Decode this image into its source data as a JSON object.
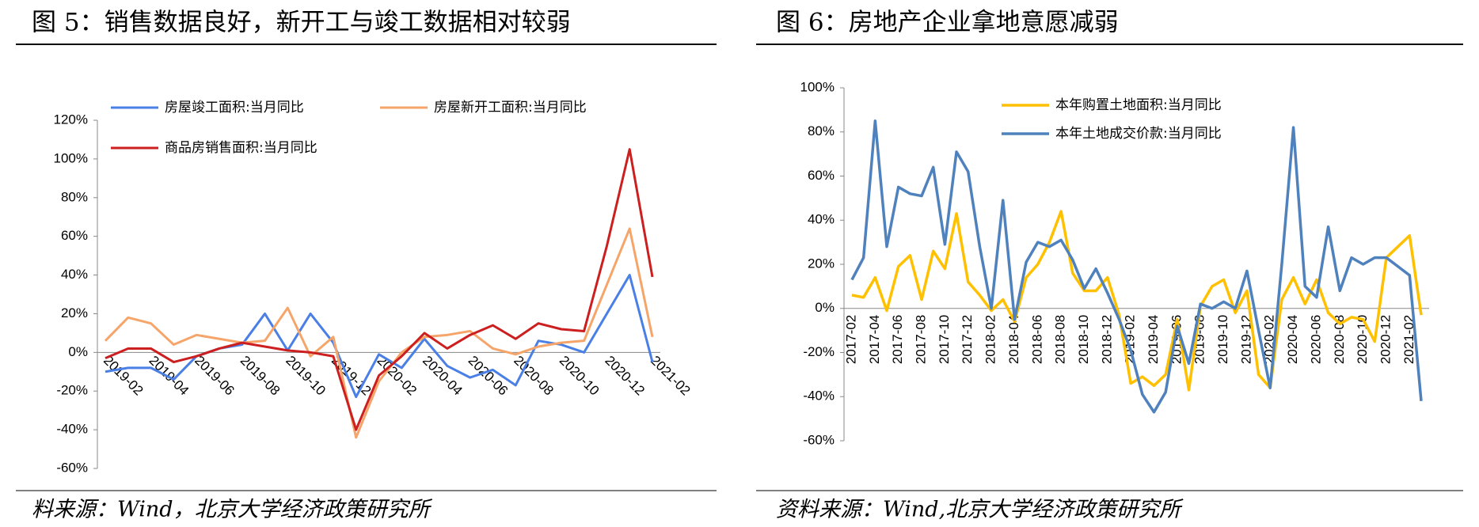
{
  "chart_data": [
    {
      "type": "line",
      "title": "图 5：销售数据良好，新开工与竣工数据相对较弱",
      "source": "料来源：Wind，北京大学经济政策研究所",
      "categories": [
        "2019-02",
        null,
        "2019-04",
        null,
        "2019-06",
        null,
        "2019-08",
        null,
        "2019-10",
        null,
        "2019-12",
        null,
        "2020-02",
        null,
        "2020-04",
        null,
        "2020-06",
        null,
        "2020-08",
        null,
        "2020-10",
        null,
        "2020-12",
        null,
        "2021-02"
      ],
      "series": [
        {
          "name": "房屋竣工面积:当月同比",
          "color": "#4a7fe6",
          "values": [
            -10,
            -8,
            -8,
            -14,
            -2,
            2,
            4,
            20,
            1,
            20,
            5,
            -23,
            -1,
            -8,
            7,
            -7,
            -13,
            -9,
            -17,
            6,
            4,
            0,
            20,
            40,
            -5
          ]
        },
        {
          "name": "房屋新开工面积:当月同比",
          "color": "#f6a56a",
          "values": [
            6,
            18,
            15,
            4,
            9,
            7,
            5,
            6,
            23,
            -2,
            8,
            -44,
            -15,
            0,
            8,
            9,
            11,
            2,
            -1,
            3,
            5,
            6,
            35,
            64,
            8
          ]
        },
        {
          "name": "商品房销售面积:当月同比",
          "color": "#cc1f1f",
          "values": [
            -3,
            2,
            2,
            -5,
            -2,
            2,
            5,
            3,
            1,
            0,
            -2,
            -40,
            -12,
            -2,
            10,
            2,
            9,
            14,
            7,
            15,
            12,
            11,
            55,
            105,
            39
          ]
        }
      ],
      "ylim": [
        -60,
        120
      ],
      "yticks": [
        {
          "value": -60,
          "label": "-60%"
        },
        {
          "value": -40,
          "label": "-40%"
        },
        {
          "value": -20,
          "label": "-20%"
        },
        {
          "value": 0,
          "label": "0%"
        },
        {
          "value": 20,
          "label": "20%"
        },
        {
          "value": 40,
          "label": "40%"
        },
        {
          "value": 60,
          "label": "60%"
        },
        {
          "value": 80,
          "label": "80%"
        },
        {
          "value": 100,
          "label": "100%"
        },
        {
          "value": 120,
          "label": "120%"
        }
      ],
      "grid": false
    },
    {
      "type": "line",
      "title": "图 6：房地产企业拿地意愿减弱",
      "source": "资料来源：Wind,北京大学经济政策研究所",
      "categories": [
        "2017-02",
        null,
        "2017-04",
        null,
        "2017-06",
        null,
        "2017-08",
        null,
        "2017-10",
        null,
        "2017-12",
        null,
        "2018-02",
        null,
        "2018-04",
        null,
        "2018-06",
        null,
        "2018-08",
        null,
        "2018-10",
        null,
        "2018-12",
        null,
        "2019-02",
        null,
        "2019-04",
        null,
        "2019-06",
        null,
        "2019-08",
        null,
        "2019-10",
        null,
        "2019-12",
        null,
        "2020-02",
        null,
        "2020-04",
        null,
        "2020-06",
        null,
        "2020-08",
        null,
        "2020-10",
        null,
        "2020-12",
        null,
        "2021-02",
        null
      ],
      "series": [
        {
          "name": "本年购置土地面积:当月同比",
          "color": "#ffc000",
          "values": [
            6,
            5,
            14,
            -1,
            19,
            24,
            4,
            26,
            18,
            43,
            12,
            6,
            -1,
            4,
            -6,
            14,
            20,
            30,
            44,
            16,
            8,
            8,
            14,
            -3,
            -34,
            -31,
            -35,
            -30,
            -5,
            -37,
            1,
            10,
            13,
            -2,
            8,
            -30,
            -36,
            4,
            14,
            2,
            13,
            -2,
            -7,
            -4,
            -5,
            -15,
            23,
            28,
            33,
            -3
          ]
        },
        {
          "name": "本年土地成交价款:当月同比",
          "color": "#4f81bd",
          "values": [
            13,
            23,
            85,
            28,
            55,
            52,
            51,
            64,
            29,
            71,
            62,
            28,
            0,
            49,
            -5,
            21,
            30,
            28,
            31,
            22,
            9,
            18,
            7,
            -5,
            -19,
            -39,
            -47,
            -38,
            -8,
            -25,
            2,
            0,
            3,
            0,
            17,
            -10,
            -36,
            20,
            82,
            10,
            5,
            37,
            8,
            23,
            20,
            23,
            23,
            19,
            15,
            -42
          ]
        }
      ],
      "ylim": [
        -60,
        100
      ],
      "yticks": [
        {
          "value": -60,
          "label": "-60%"
        },
        {
          "value": -40,
          "label": "-40%"
        },
        {
          "value": -20,
          "label": "-20%"
        },
        {
          "value": 0,
          "label": "0%"
        },
        {
          "value": 20,
          "label": "20%"
        },
        {
          "value": 40,
          "label": "40%"
        },
        {
          "value": 60,
          "label": "60%"
        },
        {
          "value": 80,
          "label": "80%"
        },
        {
          "value": 100,
          "label": "100%"
        }
      ],
      "grid": false
    }
  ]
}
